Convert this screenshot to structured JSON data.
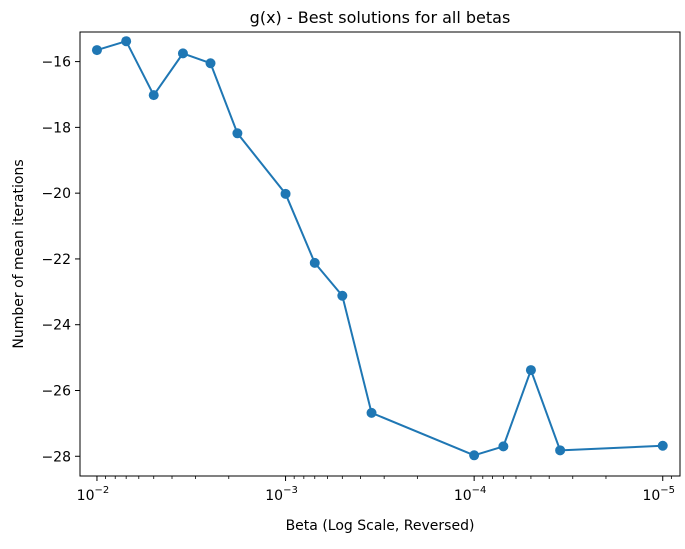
{
  "chart_data": {
    "type": "line",
    "title": "g(x) - Best solutions for all betas",
    "xlabel": "Beta (Log Scale, Reversed)",
    "ylabel": "Number of mean iterations",
    "x_scale": "log",
    "x_reversed": true,
    "xlim": [
      0.0123,
      8.1e-06
    ],
    "ylim": [
      -28.6,
      -15.1
    ],
    "x_ticks": [
      {
        "value": 0.01,
        "base": "10",
        "exp": "−2"
      },
      {
        "value": 0.001,
        "base": "10",
        "exp": "−3"
      },
      {
        "value": 0.0001,
        "base": "10",
        "exp": "−4"
      },
      {
        "value": 1e-05,
        "base": "10",
        "exp": "−5"
      }
    ],
    "y_ticks": [
      {
        "value": -16,
        "label": "−16"
      },
      {
        "value": -18,
        "label": "−18"
      },
      {
        "value": -20,
        "label": "−20"
      },
      {
        "value": -22,
        "label": "−22"
      },
      {
        "value": -24,
        "label": "−24"
      },
      {
        "value": -26,
        "label": "−26"
      },
      {
        "value": -28,
        "label": "−28"
      }
    ],
    "series": [
      {
        "color": "#1f77b4",
        "marker": "circle",
        "x": [
          0.01,
          0.007,
          0.005,
          0.0035,
          0.0025,
          0.0018,
          0.001,
          0.0007,
          0.0005,
          0.00035,
          0.0001,
          7e-05,
          5e-05,
          3.5e-05,
          1e-05
        ],
        "y": [
          -15.65,
          -15.38,
          -17.02,
          -15.75,
          -16.05,
          -18.18,
          -20.02,
          -22.12,
          -23.12,
          -26.68,
          -27.97,
          -27.7,
          -25.38,
          -27.82,
          -27.68
        ]
      }
    ]
  }
}
